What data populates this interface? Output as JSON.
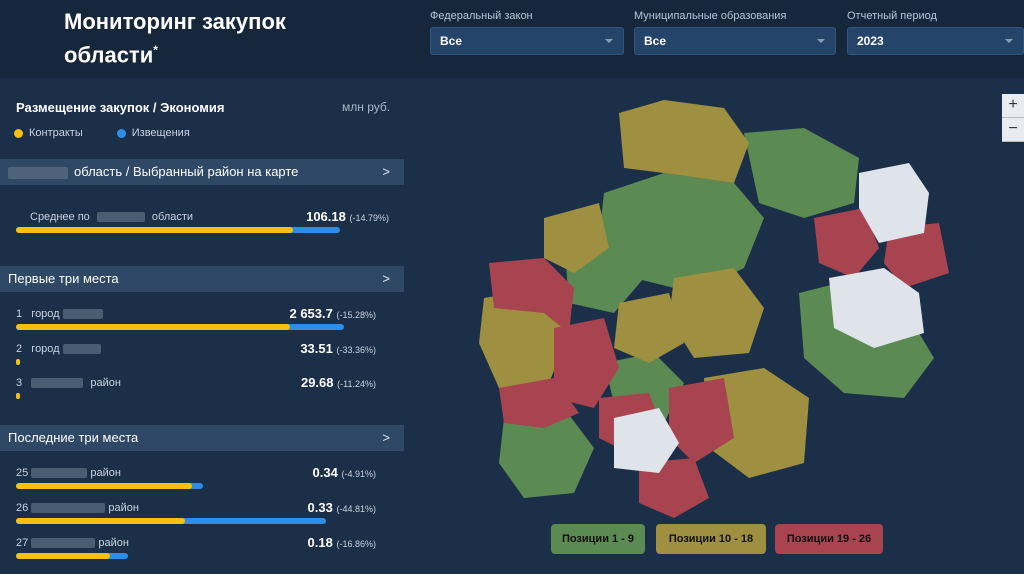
{
  "header": {
    "title_line1": "Мониторинг закупок",
    "title_line2": "области",
    "title_mark": "*",
    "filters": [
      {
        "label": "Федеральный закон",
        "value": "Все"
      },
      {
        "label": "Муниципальные образования",
        "value": "Все"
      },
      {
        "label": "Отчетный период",
        "value": "2023"
      }
    ]
  },
  "panel": {
    "title": "Размещение закупок / Экономия",
    "units": "млн руб.",
    "legend": [
      {
        "label": "Контракты",
        "color": "#f5c010"
      },
      {
        "label": "Извещения",
        "color": "#2d8eea"
      }
    ],
    "region_section": {
      "heading_suffix": "область / Выбранный район на карте",
      "rows": [
        {
          "label_prefix": "Среднее по",
          "label_suffix": "области",
          "value": "106.18",
          "change": "(-14.79%)",
          "contracts": 0.77,
          "notices": 0.9
        }
      ]
    },
    "top_section": {
      "heading": "Первые три места",
      "rows": [
        {
          "rank": "1",
          "label_prefix": "город",
          "label_suffix": "",
          "value": "2 653.7",
          "change": "(-15.28%)",
          "contracts": 0.76,
          "notices": 0.91
        },
        {
          "rank": "2",
          "label_prefix": "город",
          "label_suffix": "",
          "value": "33.51",
          "change": "(-33.36%)",
          "contracts": 0.01,
          "notices": 0.01
        },
        {
          "rank": "3",
          "label_prefix": "",
          "label_suffix": "район",
          "value": "29.68",
          "change": "(-11.24%)",
          "contracts": 0.01,
          "notices": 0.01
        }
      ]
    },
    "bottom_section": {
      "heading": "Последние три места",
      "rows": [
        {
          "rank": "25",
          "label_prefix": "",
          "label_suffix": "район",
          "value": "0.34",
          "change": "(-4.91%)",
          "contracts": 0.49,
          "notices": 0.52
        },
        {
          "rank": "26",
          "label_prefix": "",
          "label_suffix": "район",
          "value": "0.33",
          "change": "(-44.81%)",
          "contracts": 0.47,
          "notices": 0.86
        },
        {
          "rank": "27",
          "label_prefix": "",
          "label_suffix": "район",
          "value": "0.18",
          "change": "(-16.86%)",
          "contracts": 0.26,
          "notices": 0.31
        }
      ]
    }
  },
  "map": {
    "zoom_in": "+",
    "zoom_out": "−",
    "legend": [
      {
        "label": "Позиции 1 - 9",
        "color": "#5b8a52"
      },
      {
        "label": "Позиции 10 - 18",
        "color": "#9e9040"
      },
      {
        "label": "Позиции 19 - 26",
        "color": "#a84350"
      }
    ]
  }
}
